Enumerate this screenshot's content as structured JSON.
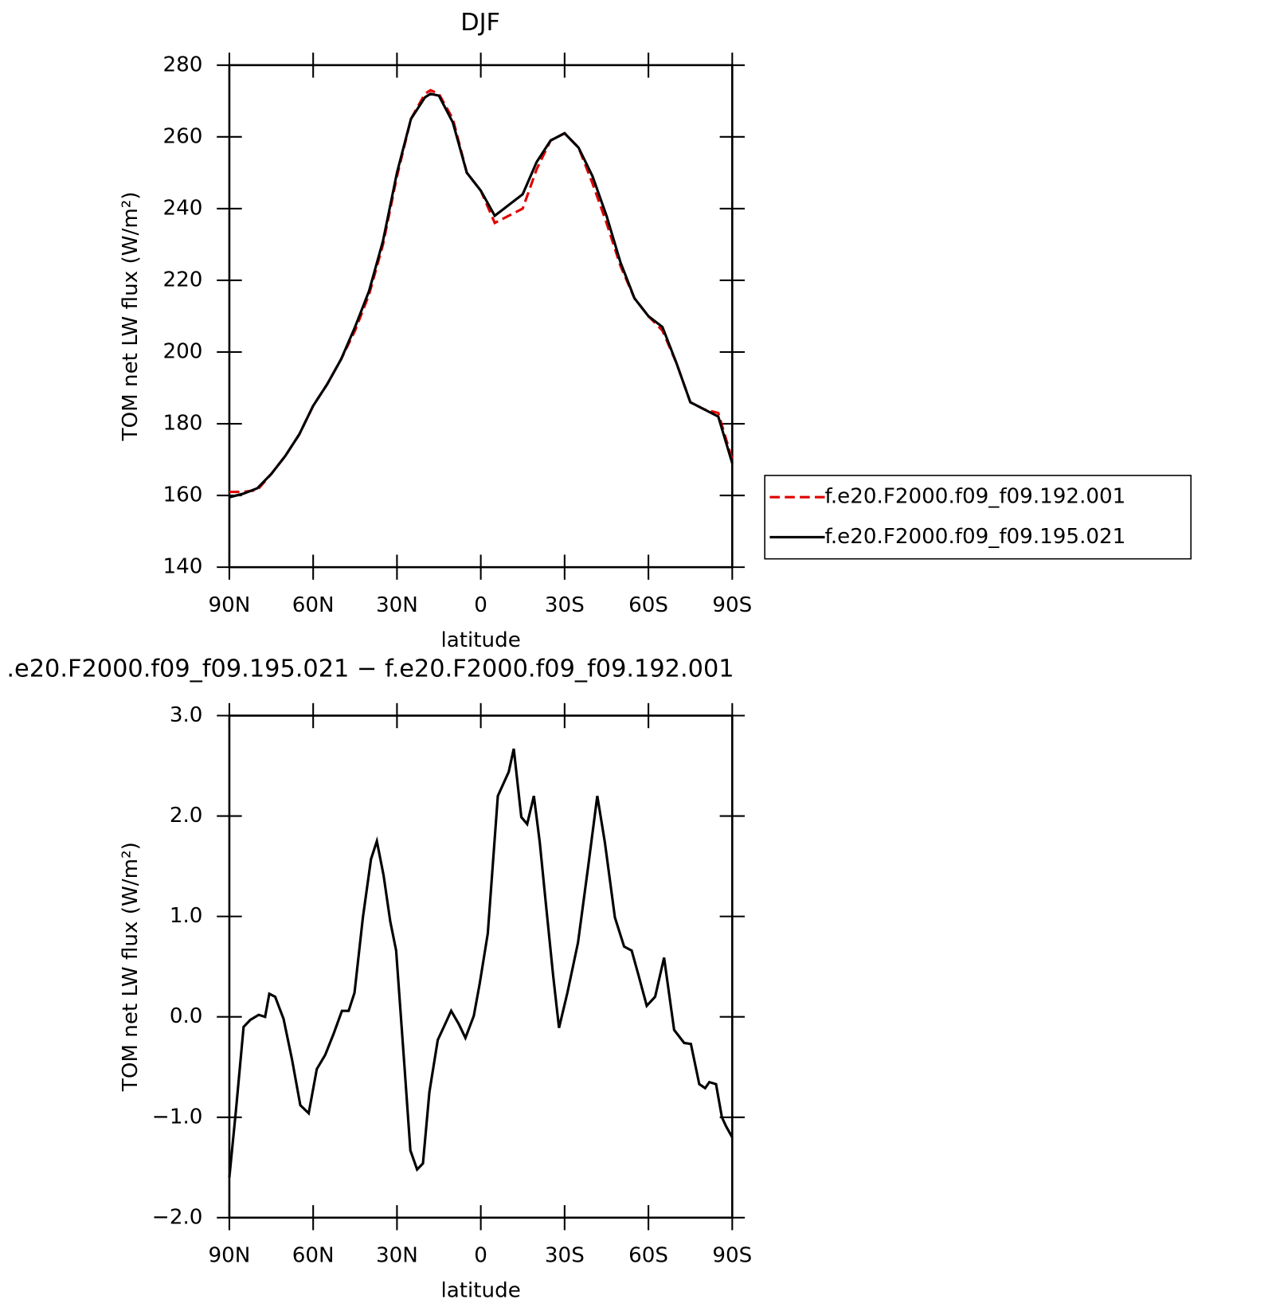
{
  "chart_data": [
    {
      "type": "line",
      "title": "DJF",
      "xlabel": "latitude",
      "ylabel": "TOM net LW flux (W/m²)",
      "x": [
        90,
        85,
        80,
        75,
        70,
        65,
        60,
        55,
        50,
        45,
        40,
        35,
        30,
        25,
        20,
        18,
        15,
        10,
        5,
        0,
        -5,
        -10,
        -15,
        -20,
        -25,
        -30,
        -35,
        -40,
        -45,
        -50,
        -55,
        -60,
        -65,
        -70,
        -75,
        -80,
        -85,
        -90
      ],
      "series": [
        {
          "name": "f.e20.F2000.f09_f09.192.001",
          "color": "#e00000",
          "dashed": true,
          "values": [
            161,
            161,
            161.5,
            166,
            171,
            177,
            185,
            191,
            198,
            206,
            216,
            230,
            249,
            265,
            272,
            273,
            272,
            265,
            250,
            245,
            236,
            238,
            240,
            251,
            259,
            261,
            257,
            247,
            236,
            224,
            215,
            210,
            206,
            197,
            186,
            184,
            183,
            170
          ]
        },
        {
          "name": "f.e20.F2000.f09_f09.195.021",
          "color": "#000000",
          "dashed": false,
          "values": [
            159.5,
            160.5,
            162,
            166,
            171,
            177,
            185,
            191,
            198,
            207,
            217,
            231,
            250,
            265,
            271,
            272,
            271.5,
            264,
            250,
            245,
            238,
            241,
            244,
            253,
            259,
            261,
            257,
            249,
            238,
            225,
            215,
            210,
            207,
            197,
            186,
            184,
            182,
            169
          ]
        }
      ],
      "xlim": [
        90,
        -90
      ],
      "xticks": [
        {
          "value": 90,
          "label": "90N"
        },
        {
          "value": 60,
          "label": "60N"
        },
        {
          "value": 30,
          "label": "30N"
        },
        0,
        {
          "value": -30,
          "label": "30S"
        },
        {
          "value": -60,
          "label": "60S"
        },
        {
          "value": -90,
          "label": "90S"
        }
      ],
      "ylim": [
        140,
        280
      ],
      "yticks": [
        140,
        160,
        180,
        200,
        220,
        240,
        260,
        280
      ],
      "legend": "right"
    },
    {
      "type": "line",
      "title": ".e20.F2000.f09_f09.195.021 − f.e20.F2000.f09_f09.192.001",
      "xlabel": "latitude",
      "ylabel": "TOM net LW flux (W/m²)",
      "x": [
        90,
        87.6,
        84.9,
        82.5,
        79.5,
        77.2,
        75.7,
        73.6,
        70.6,
        67.6,
        64.6,
        61.6,
        58.7,
        55.7,
        52.7,
        49.7,
        47.3,
        45.2,
        42.2,
        39.3,
        37.2,
        34.8,
        32.4,
        30.3,
        28.8,
        27.3,
        25.2,
        22.8,
        20.7,
        18.4,
        15.4,
        12.4,
        10.6,
        7.9,
        5.5,
        2.5,
        0.4,
        -2.5,
        -6.1,
        -10,
        -11.8,
        -14.5,
        -16.6,
        -19,
        -21.1,
        -23.5,
        -25.9,
        -28,
        -31,
        -34.8,
        -38.4,
        -41.7,
        -44.4,
        -48,
        -51.3,
        -54,
        -56.4,
        -59.4,
        -62.4,
        -65.6,
        -69.2,
        -72.8,
        -75.2,
        -78.2,
        -80.3,
        -81.8,
        -84.2,
        -86.3,
        -87.8,
        -90
      ],
      "series": [
        {
          "name": null,
          "color": "#000000",
          "dashed": false,
          "values": [
            -1.6,
            -0.92,
            -0.1,
            -0.03,
            0.02,
            0,
            0.23,
            0.2,
            -0.02,
            -0.42,
            -0.88,
            -0.96,
            -0.52,
            -0.38,
            -0.17,
            0.06,
            0.06,
            0.24,
            0.99,
            1.57,
            1.75,
            1.41,
            0.95,
            0.66,
            0.08,
            -0.5,
            -1.33,
            -1.52,
            -1.46,
            -0.75,
            -0.23,
            -0.05,
            0.06,
            -0.07,
            -0.21,
            0.01,
            0.33,
            0.83,
            2.2,
            2.44,
            2.67,
            1.99,
            1.92,
            2.2,
            1.74,
            1.07,
            0.41,
            -0.11,
            0.24,
            0.74,
            1.49,
            2.2,
            1.74,
            0.99,
            0.7,
            0.66,
            0.42,
            0.11,
            0.2,
            0.59,
            -0.13,
            -0.26,
            -0.27,
            -0.67,
            -0.71,
            -0.65,
            -0.67,
            -1.0,
            -1.09,
            -1.2
          ]
        }
      ],
      "xlim": [
        90,
        -90
      ],
      "xticks": [
        {
          "value": 90,
          "label": "90N"
        },
        {
          "value": 60,
          "label": "60N"
        },
        {
          "value": 30,
          "label": "30N"
        },
        0,
        {
          "value": -30,
          "label": "30S"
        },
        {
          "value": -60,
          "label": "60S"
        },
        {
          "value": -90,
          "label": "90S"
        }
      ],
      "ylim": [
        -2,
        3
      ],
      "yticks": [
        {
          "value": -2,
          "label": "−2.0"
        },
        {
          "value": -1,
          "label": "−1.0"
        },
        {
          "value": 0,
          "label": "0.0"
        },
        {
          "value": 1,
          "label": "1.0"
        },
        {
          "value": 2,
          "label": "2.0"
        },
        {
          "value": 3,
          "label": "3.0"
        }
      ]
    }
  ]
}
